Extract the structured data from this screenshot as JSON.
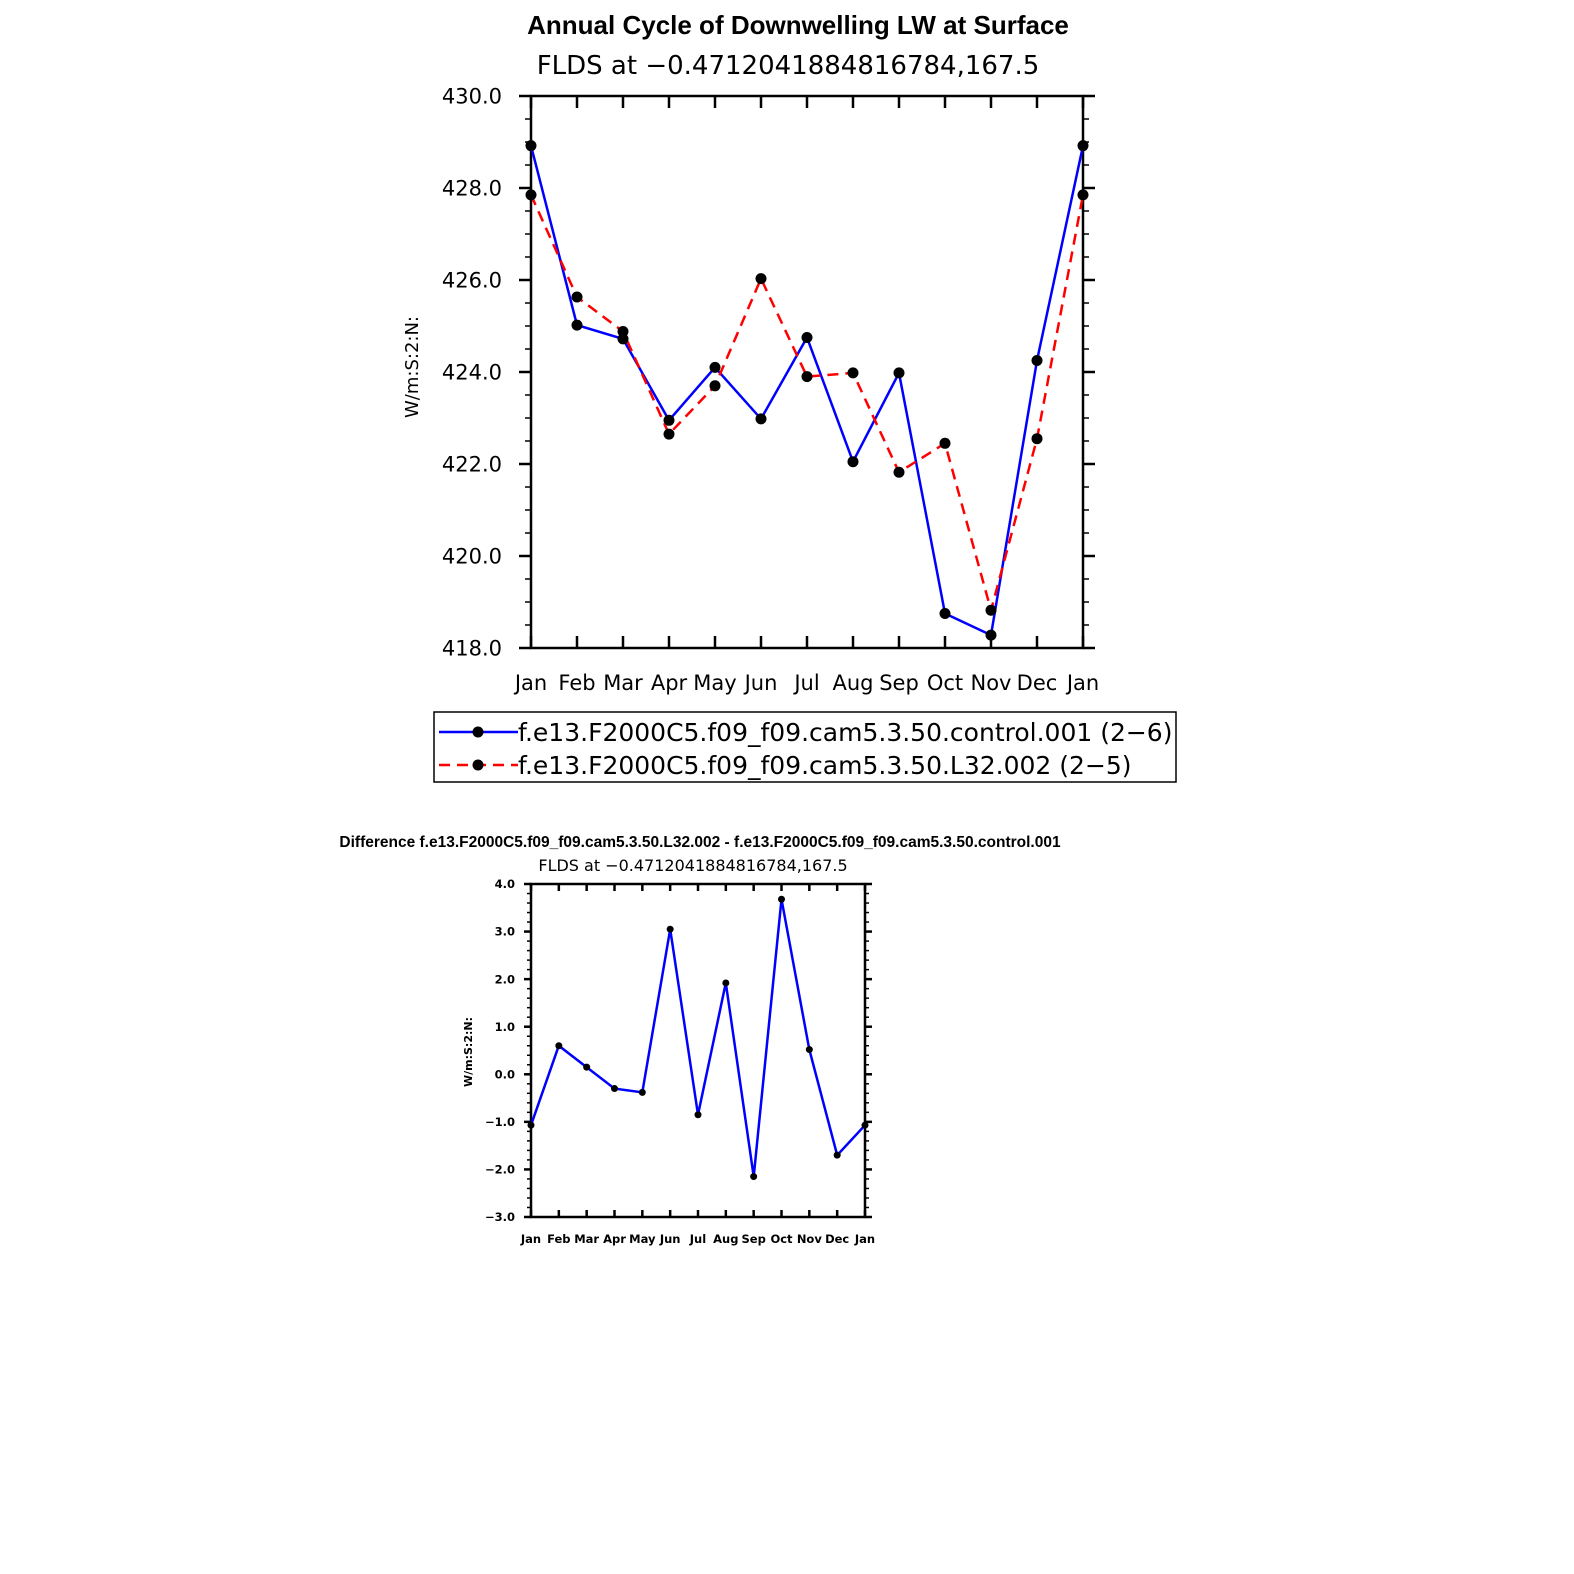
{
  "chart_data": [
    {
      "type": "line",
      "title": "Annual Cycle of Downwelling LW at Surface",
      "subtitle": "FLDS at −0.4712041884816784,167.5",
      "xlabel": "",
      "ylabel": "W/m:S:2:N:",
      "categories": [
        "Jan",
        "Feb",
        "Mar",
        "Apr",
        "May",
        "Jun",
        "Jul",
        "Aug",
        "Sep",
        "Oct",
        "Nov",
        "Dec",
        "Jan"
      ],
      "ylim": [
        418.0,
        430.0
      ],
      "yticks": [
        "418.0",
        "420.0",
        "422.0",
        "424.0",
        "426.0",
        "428.0",
        "430.0"
      ],
      "grid": false,
      "legend_position": "bottom",
      "series": [
        {
          "name": "f.e13.F2000C5.f09_f09.cam5.3.50.control.001 (2−6)",
          "color": "#0000ff",
          "style": "solid",
          "values": [
            428.92,
            425.02,
            424.72,
            422.95,
            424.1,
            422.98,
            424.75,
            422.05,
            423.98,
            418.75,
            418.28,
            424.25,
            428.92
          ]
        },
        {
          "name": "f.e13.F2000C5.f09_f09.cam5.3.50.L32.002 (2−5)",
          "color": "#ff0000",
          "style": "dashed",
          "values": [
            427.85,
            425.63,
            424.88,
            422.65,
            423.7,
            426.03,
            423.9,
            423.98,
            421.82,
            422.45,
            418.82,
            422.55,
            427.85
          ]
        }
      ]
    },
    {
      "type": "line",
      "title": "Difference f.e13.F2000C5.f09_f09.cam5.3.50.L32.002 - f.e13.F2000C5.f09_f09.cam5.3.50.control.001",
      "subtitle": "FLDS at −0.4712041884816784,167.5",
      "xlabel": "",
      "ylabel": "W/m:S:2:N:",
      "categories": [
        "Jan",
        "Feb",
        "Mar",
        "Apr",
        "May",
        "Jun",
        "Jul",
        "Aug",
        "Sep",
        "Oct",
        "Nov",
        "Dec",
        "Jan"
      ],
      "ylim": [
        -3.0,
        4.0
      ],
      "yticks": [
        "−3.0",
        "−2.0",
        "−1.0",
        "0.0",
        "1.0",
        "2.0",
        "3.0",
        "4.0"
      ],
      "grid": false,
      "series": [
        {
          "color": "#0000ff",
          "style": "solid",
          "values": [
            -1.07,
            0.6,
            0.15,
            -0.3,
            -0.38,
            3.05,
            -0.85,
            1.92,
            -2.15,
            3.68,
            0.52,
            -1.7,
            -1.07
          ]
        }
      ]
    }
  ]
}
